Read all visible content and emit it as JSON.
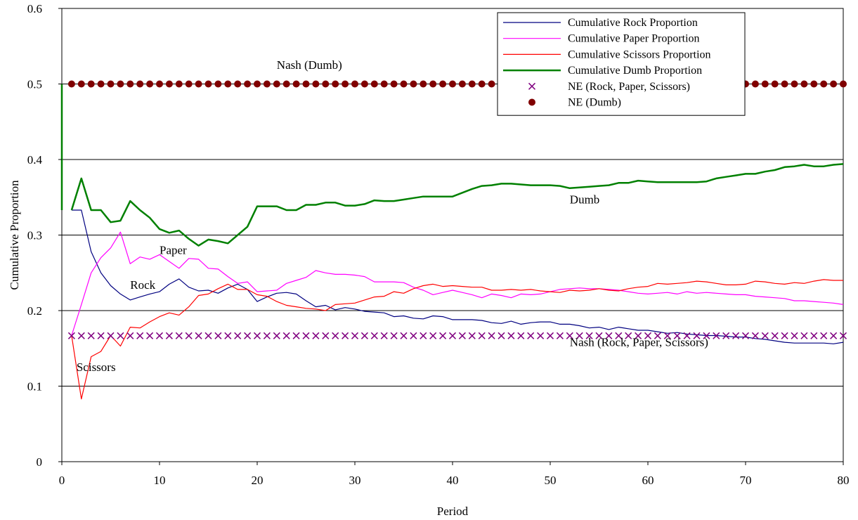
{
  "chart_data": {
    "type": "line",
    "title": "",
    "xlabel": "Period",
    "ylabel": "Cumulative Proportion",
    "xlim": [
      0,
      80
    ],
    "ylim": [
      0,
      0.6
    ],
    "x_ticks": [
      0,
      10,
      20,
      30,
      40,
      50,
      60,
      70,
      80
    ],
    "x_tick_labels": [
      "0",
      "10",
      "20",
      "30",
      "40",
      "50",
      "60",
      "70",
      "80"
    ],
    "y_ticks": [
      0,
      0.1,
      0.2,
      0.3,
      0.4,
      0.5,
      0.6
    ],
    "y_tick_labels": [
      "0",
      "0.1",
      "0.2",
      "0.3",
      "0.4",
      "0.5",
      "0.6"
    ],
    "grid": "horizontal",
    "legend_position": "top-right",
    "colors": {
      "rock": "#000080",
      "paper": "#ff00ff",
      "scissors": "#ff0000",
      "dumb": "#008000",
      "ne_rps": "#800080",
      "ne_dumb": "#800000"
    },
    "series": [
      {
        "name": "Cumulative Rock Proportion",
        "style": "line",
        "color_key": "rock",
        "values": [
          0.333,
          0.333,
          0.278,
          0.25,
          0.233,
          0.222,
          0.214,
          0.218,
          0.222,
          0.225,
          0.235,
          0.242,
          0.231,
          0.226,
          0.227,
          0.223,
          0.23,
          0.235,
          0.228,
          0.212,
          0.218,
          0.223,
          0.224,
          0.222,
          0.213,
          0.205,
          0.207,
          0.201,
          0.204,
          0.202,
          0.199,
          0.198,
          0.197,
          0.192,
          0.193,
          0.19,
          0.189,
          0.193,
          0.192,
          0.188,
          0.188,
          0.188,
          0.187,
          0.184,
          0.183,
          0.186,
          0.182,
          0.184,
          0.185,
          0.185,
          0.182,
          0.182,
          0.18,
          0.177,
          0.178,
          0.175,
          0.178,
          0.176,
          0.174,
          0.174,
          0.172,
          0.17,
          0.171,
          0.169,
          0.168,
          0.167,
          0.167,
          0.166,
          0.165,
          0.165,
          0.163,
          0.162,
          0.16,
          0.158,
          0.157,
          0.157,
          0.157,
          0.157,
          0.156,
          0.158
        ]
      },
      {
        "name": "Cumulative Paper Proportion",
        "style": "line",
        "color_key": "paper",
        "values": [
          0.167,
          0.208,
          0.25,
          0.27,
          0.283,
          0.304,
          0.262,
          0.271,
          0.268,
          0.274,
          0.265,
          0.256,
          0.269,
          0.268,
          0.256,
          0.255,
          0.245,
          0.236,
          0.238,
          0.225,
          0.226,
          0.227,
          0.236,
          0.24,
          0.244,
          0.253,
          0.25,
          0.248,
          0.248,
          0.247,
          0.245,
          0.238,
          0.238,
          0.238,
          0.237,
          0.231,
          0.227,
          0.221,
          0.224,
          0.227,
          0.224,
          0.221,
          0.217,
          0.222,
          0.22,
          0.217,
          0.222,
          0.221,
          0.222,
          0.225,
          0.228,
          0.229,
          0.23,
          0.229,
          0.229,
          0.228,
          0.227,
          0.225,
          0.223,
          0.222,
          0.223,
          0.224,
          0.222,
          0.225,
          0.223,
          0.224,
          0.223,
          0.222,
          0.221,
          0.221,
          0.219,
          0.218,
          0.217,
          0.216,
          0.213,
          0.213,
          0.212,
          0.211,
          0.21,
          0.208
        ]
      },
      {
        "name": "Cumulative Scissors Proportion",
        "style": "line",
        "color_key": "scissors",
        "values": [
          0.167,
          0.083,
          0.139,
          0.146,
          0.167,
          0.153,
          0.178,
          0.177,
          0.185,
          0.192,
          0.197,
          0.194,
          0.205,
          0.22,
          0.222,
          0.229,
          0.235,
          0.228,
          0.228,
          0.221,
          0.219,
          0.212,
          0.207,
          0.205,
          0.203,
          0.202,
          0.2,
          0.208,
          0.209,
          0.21,
          0.214,
          0.218,
          0.219,
          0.225,
          0.223,
          0.229,
          0.233,
          0.235,
          0.232,
          0.233,
          0.232,
          0.231,
          0.231,
          0.227,
          0.227,
          0.228,
          0.227,
          0.228,
          0.226,
          0.225,
          0.224,
          0.227,
          0.226,
          0.227,
          0.229,
          0.227,
          0.226,
          0.229,
          0.231,
          0.232,
          0.236,
          0.235,
          0.236,
          0.237,
          0.239,
          0.238,
          0.236,
          0.234,
          0.234,
          0.235,
          0.239,
          0.238,
          0.236,
          0.235,
          0.237,
          0.236,
          0.239,
          0.241,
          0.24,
          0.24
        ]
      },
      {
        "name": "Cumulative Dumb Proportion",
        "style": "line",
        "color_key": "dumb",
        "values": [
          0.333,
          0.375,
          0.333,
          0.333,
          0.317,
          0.319,
          0.345,
          0.333,
          0.323,
          0.308,
          0.303,
          0.306,
          0.295,
          0.286,
          0.294,
          0.292,
          0.289,
          0.3,
          0.311,
          0.338,
          0.338,
          0.338,
          0.333,
          0.333,
          0.34,
          0.34,
          0.343,
          0.343,
          0.339,
          0.339,
          0.341,
          0.346,
          0.345,
          0.345,
          0.347,
          0.349,
          0.351,
          0.351,
          0.351,
          0.351,
          0.356,
          0.361,
          0.365,
          0.366,
          0.368,
          0.368,
          0.367,
          0.366,
          0.366,
          0.366,
          0.365,
          0.362,
          0.363,
          0.364,
          0.365,
          0.366,
          0.369,
          0.369,
          0.372,
          0.371,
          0.37,
          0.37,
          0.37,
          0.37,
          0.37,
          0.371,
          0.375,
          0.377,
          0.379,
          0.381,
          0.381,
          0.384,
          0.386,
          0.39,
          0.391,
          0.393,
          0.391,
          0.391,
          0.393,
          0.394
        ]
      },
      {
        "name": "NE (Rock, Paper, Scissors)",
        "style": "markers-x",
        "color_key": "ne_rps",
        "constant": 0.1667,
        "x_from": 1,
        "x_to": 80
      },
      {
        "name": "NE (Dumb)",
        "style": "markers-dot",
        "color_key": "ne_dumb",
        "constant": 0.5,
        "x_from": 1,
        "x_to": 80
      }
    ],
    "annotations": [
      {
        "text": "Nash (Dumb)",
        "x": 22,
        "y": 0.52
      },
      {
        "text": "Dumb",
        "x": 52,
        "y": 0.342
      },
      {
        "text": "Paper",
        "x": 10,
        "y": 0.275
      },
      {
        "text": "Rock",
        "x": 7,
        "y": 0.229
      },
      {
        "text": "Scissors",
        "x": 1.5,
        "y": 0.12
      },
      {
        "text": "Nash (Rock, Paper, Scissors)",
        "x": 52,
        "y": 0.153
      }
    ]
  }
}
